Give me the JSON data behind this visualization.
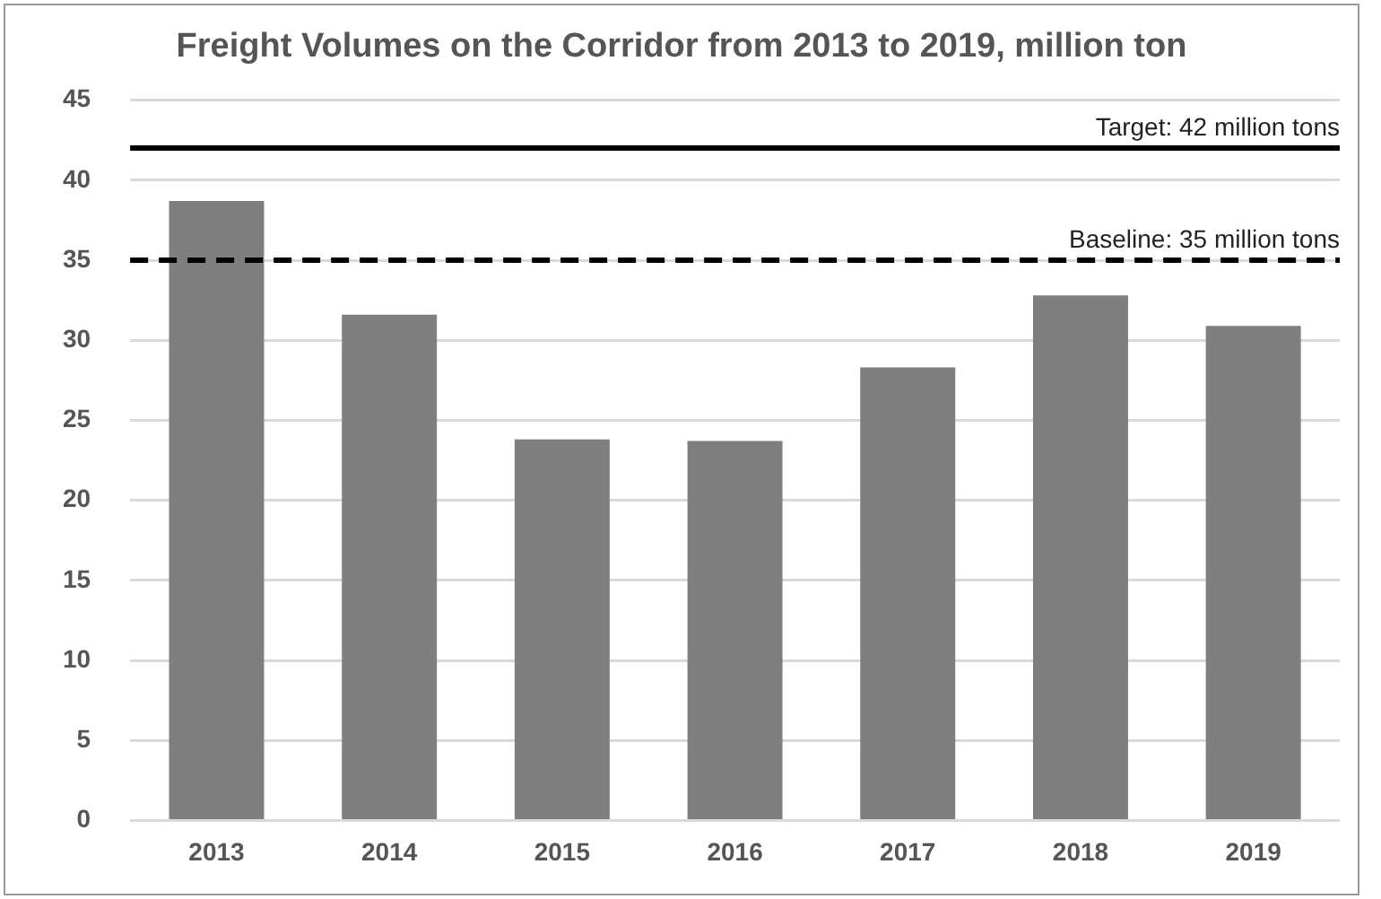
{
  "chart_data": {
    "type": "bar",
    "title": "Freight Volumes on the Corridor from 2013 to 2019, million ton",
    "categories": [
      "2013",
      "2014",
      "2015",
      "2016",
      "2017",
      "2018",
      "2019"
    ],
    "values": [
      38.7,
      31.6,
      23.8,
      23.7,
      28.3,
      32.8,
      30.9
    ],
    "color": "#7f7f7f",
    "ylim": [
      0,
      45
    ],
    "yticks": [
      0,
      5,
      10,
      15,
      20,
      25,
      30,
      35,
      40,
      45
    ],
    "grid": "y",
    "legend": false,
    "ref_lines": [
      {
        "axis": "y",
        "value": 42,
        "label": "Target: 42 million tons",
        "color": "#000000",
        "line_style": "solid"
      },
      {
        "axis": "y",
        "value": 35,
        "label": "Baseline: 35 million tons",
        "color": "#000000",
        "line_style": "dashed"
      }
    ]
  }
}
